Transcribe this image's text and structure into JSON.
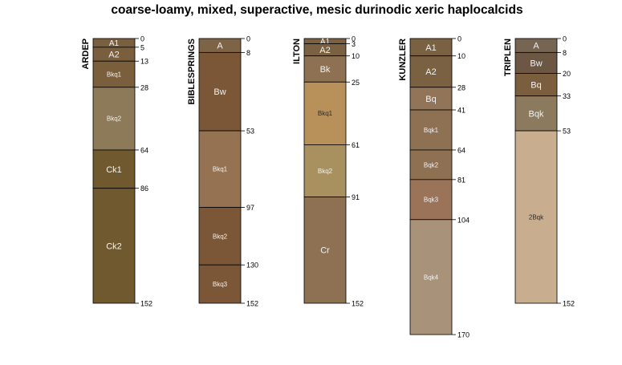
{
  "chart_data": {
    "type": "soil-profile-sketch",
    "title": "coarse-loamy, mixed, superactive, mesic durinodic xeric haplocalcids",
    "units": "cm",
    "profiles": [
      {
        "id": "ARDEP",
        "horizons": [
          {
            "name": "A1",
            "top": 0,
            "bottom": 5,
            "color": "#7a5f3f",
            "top_label": "0"
          },
          {
            "name": "A2",
            "top": 5,
            "bottom": 13,
            "color": "#7a5f3f",
            "top_label": "5"
          },
          {
            "name": "Bkq1",
            "top": 13,
            "bottom": 28,
            "color": "#7a5f3d",
            "top_label": "13"
          },
          {
            "name": "Bkq2",
            "top": 28,
            "bottom": 64,
            "color": "#8c7a59",
            "top_label": "28"
          },
          {
            "name": "Ck1",
            "top": 64,
            "bottom": 86,
            "color": "#70592f",
            "top_label": "64"
          },
          {
            "name": "Ck2",
            "top": 86,
            "bottom": 152,
            "color": "#70592f",
            "top_label": "86"
          }
        ],
        "bottom_label": "152"
      },
      {
        "id": "BIBLESPRINGS",
        "horizons": [
          {
            "name": "A",
            "top": 0,
            "bottom": 8,
            "color": "#7e6447",
            "top_label": "0"
          },
          {
            "name": "Bw",
            "top": 8,
            "bottom": 53,
            "color": "#7b5738",
            "top_label": "8"
          },
          {
            "name": "Bkq1",
            "top": 53,
            "bottom": 97,
            "color": "#957252",
            "top_label": "53"
          },
          {
            "name": "Bkq2",
            "top": 97,
            "bottom": 130,
            "color": "#7b5738",
            "top_label": "97"
          },
          {
            "name": "Bkq3",
            "top": 130,
            "bottom": 152,
            "color": "#7b5738",
            "top_label": "130"
          }
        ],
        "bottom_label": "152"
      },
      {
        "id": "ILTON",
        "horizons": [
          {
            "name": "A1",
            "top": 0,
            "bottom": 3,
            "color": "#7a6142",
            "top_label": "0"
          },
          {
            "name": "A2",
            "top": 3,
            "bottom": 10,
            "color": "#7a6142",
            "top_label": "3"
          },
          {
            "name": "Bk",
            "top": 10,
            "bottom": 25,
            "color": "#8e7152",
            "top_label": "10"
          },
          {
            "name": "Bkq1",
            "top": 25,
            "bottom": 61,
            "color": "#b8915a",
            "top_label": "25"
          },
          {
            "name": "Bkq2",
            "top": 61,
            "bottom": 91,
            "color": "#a8915f",
            "top_label": "61"
          },
          {
            "name": "Cr",
            "top": 91,
            "bottom": 152,
            "color": "#8e7152",
            "top_label": "91"
          }
        ],
        "bottom_label": "152"
      },
      {
        "id": "KUNZLER",
        "horizons": [
          {
            "name": "A1",
            "top": 0,
            "bottom": 10,
            "color": "#7a6142",
            "top_label": "0"
          },
          {
            "name": "A2",
            "top": 10,
            "bottom": 28,
            "color": "#7a6142",
            "top_label": "10"
          },
          {
            "name": "Bq",
            "top": 28,
            "bottom": 41,
            "color": "#927559",
            "top_label": "28"
          },
          {
            "name": "Bqk1",
            "top": 41,
            "bottom": 64,
            "color": "#8e7152",
            "top_label": "41"
          },
          {
            "name": "Bqk2",
            "top": 64,
            "bottom": 81,
            "color": "#8e7152",
            "top_label": "64"
          },
          {
            "name": "Bqk3",
            "top": 81,
            "bottom": 104,
            "color": "#9a7358",
            "top_label": "81"
          },
          {
            "name": "Bqk4",
            "top": 104,
            "bottom": 170,
            "color": "#a8927a",
            "top_label": "104"
          }
        ],
        "bottom_label": "170"
      },
      {
        "id": "TRIPLEN",
        "horizons": [
          {
            "name": "A",
            "top": 0,
            "bottom": 8,
            "color": "#756552",
            "top_label": "0"
          },
          {
            "name": "Bw",
            "top": 8,
            "bottom": 20,
            "color": "#6b5744",
            "top_label": "8"
          },
          {
            "name": "Bq",
            "top": 20,
            "bottom": 33,
            "color": "#7b5e3d",
            "top_label": "20"
          },
          {
            "name": "Bqk",
            "top": 33,
            "bottom": 53,
            "color": "#8c7a5e",
            "top_label": "33"
          },
          {
            "name": "2Bqk",
            "top": 53,
            "bottom": 152,
            "color": "#c8ad8f",
            "top_label": "53"
          }
        ],
        "bottom_label": "152"
      }
    ]
  }
}
